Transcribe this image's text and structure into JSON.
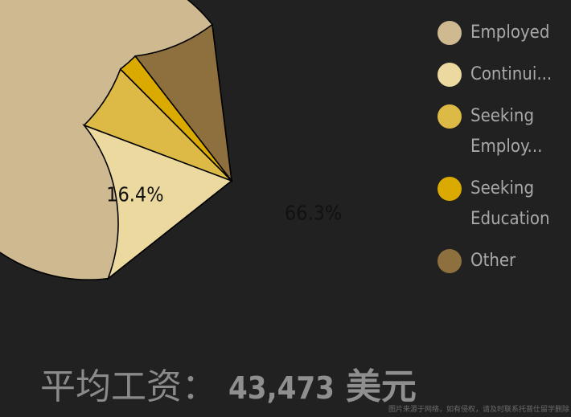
{
  "chart_data": {
    "type": "pie",
    "slices": [
      {
        "label": "Employed",
        "legend_text": "Employed",
        "value": 66.3,
        "color": "#cfb991",
        "data_label": "66.3%"
      },
      {
        "label": "Continuing Education",
        "legend_text": "Continui...",
        "value": 16.4,
        "color": "#ebd99f",
        "data_label": "16.4%"
      },
      {
        "label": "Seeking Employment",
        "legend_text": "Seeking Employ...",
        "value": 6.8,
        "color": "#ddb945",
        "data_label": ""
      },
      {
        "label": "Seeking Education",
        "legend_text": "Seeking Education",
        "value": 2.0,
        "color": "#daaa00",
        "data_label": ""
      },
      {
        "label": "Other",
        "legend_text": "Other",
        "value": 8.5,
        "color": "#8e6f3e",
        "data_label": ""
      }
    ],
    "legend_position": "right"
  },
  "footer": {
    "label": "平均工资：",
    "amount": "43,473",
    "unit": "美元"
  },
  "watermark": "图片来源于网络，如有侵权，请及时联系托普仕留学删除"
}
